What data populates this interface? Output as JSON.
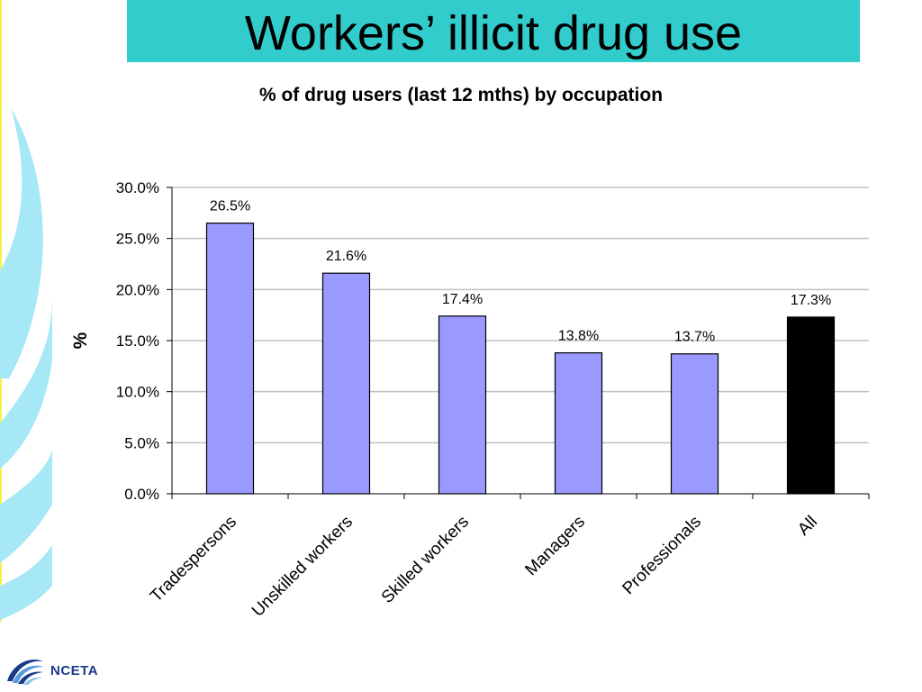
{
  "slide": {
    "title": "Workers’ illicit drug use",
    "title_bar_color": "#33CCCC",
    "accent_color": "#A6E8F5",
    "logo_text": "NCETA",
    "logo_color": "#1B3A8A"
  },
  "chart_data": {
    "type": "bar",
    "title": "% of drug users (last 12 mths) by occupation",
    "ylabel": "%",
    "xlabel": "",
    "categories": [
      "Tradespersons",
      "Unskilled workers",
      "Skilled workers",
      "Managers",
      "Professionals",
      "All"
    ],
    "values": [
      26.5,
      21.6,
      17.4,
      13.8,
      13.7,
      17.3
    ],
    "value_labels": [
      "26.5%",
      "21.6%",
      "17.4%",
      "13.8%",
      "13.7%",
      "17.3%"
    ],
    "bar_colors": [
      "#9999FF",
      "#9999FF",
      "#9999FF",
      "#9999FF",
      "#9999FF",
      "#000000"
    ],
    "ylim": [
      0,
      30
    ],
    "yticks": [
      0,
      5,
      10,
      15,
      20,
      25,
      30
    ],
    "ytick_labels": [
      "0.0%",
      "5.0%",
      "10.0%",
      "15.0%",
      "20.0%",
      "25.0%",
      "30.0%"
    ],
    "grid": true,
    "legend": "none"
  }
}
